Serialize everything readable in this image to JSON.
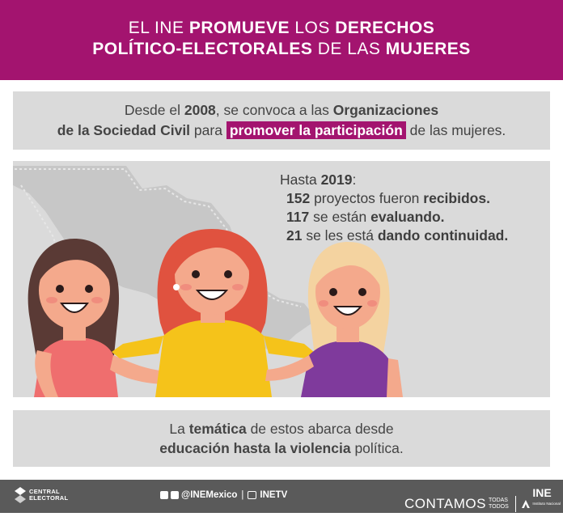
{
  "header": {
    "line1_a": "EL INE ",
    "line1_b": "PROMUEVE",
    "line1_c": " LOS ",
    "line1_d": "DERECHOS",
    "line2_a": "POLÍTICO-ELECTORALES",
    "line2_b": " DE LAS ",
    "line2_c": "MUJERES"
  },
  "intro": {
    "p1": "Desde el ",
    "p2": "2008",
    "p3": ", se convoca a las ",
    "p4": "Organizaciones",
    "p5": "de la Sociedad Civil",
    "p6": " para ",
    "p7": "promover la participación",
    "p8": " de las mujeres."
  },
  "stats": {
    "head_a": "Hasta ",
    "head_b": "2019",
    "head_c": ":",
    "r1_num": "152",
    "r1_text": " proyectos fueron ",
    "r1_bold": "recibidos.",
    "r2_num": "117",
    "r2_text": " se están ",
    "r2_bold": "evaluando.",
    "r3_num": "21",
    "r3_text": " se les está ",
    "r3_bold": "dando continuidad."
  },
  "closing": {
    "a": "La ",
    "b": "temática",
    "c": " de estos abarca desde",
    "d": "educación hasta la violencia",
    "e": " política."
  },
  "footer": {
    "central": "CENTRAL",
    "electoral": "ELECTORAL",
    "handle": "@INEMexico",
    "separator": "|",
    "tv": "INETV",
    "contamos": "CONTAMOS",
    "todas": "TODAS",
    "todos": "TODOS",
    "ine": "INE",
    "ine_sub": "Instituto Nacional Electoral"
  },
  "colors": {
    "brand": "#a3146f",
    "panel": "#dadada",
    "footer": "#5a5a5a"
  }
}
